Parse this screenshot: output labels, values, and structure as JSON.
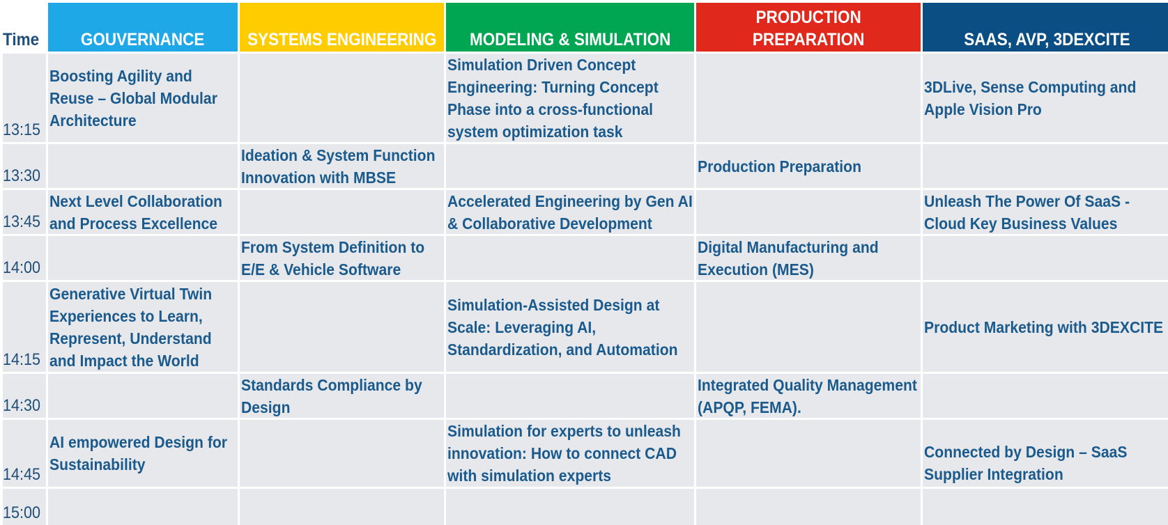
{
  "headers": {
    "time": "Time",
    "c1": "GOUVERNANCE",
    "c2": "SYSTEMS ENGINEERING",
    "c3": "MODELING & SIMULATION",
    "c4_line1": "PRODUCTION",
    "c4_line2": "PREPARATION",
    "c5": "SAAS, AVP, 3DEXCITE"
  },
  "header_colors": {
    "c1": "#1fa8e8",
    "c2": "#ffcc00",
    "c3": "#00a651",
    "c4": "#e0291c",
    "c5": "#0b4e84"
  },
  "times": [
    "13:15",
    "13:30",
    "13:45",
    "14:00",
    "14:15",
    "14:30",
    "14:45",
    "15:00"
  ],
  "sessions": {
    "gov_1315": "Boosting Agility and Reuse – Global Modular Architecture",
    "gov_1345": "Next Level Collaboration and Process Excellence",
    "gov_1415": "Generative Virtual Twin Experiences to Learn, Represent, Understand and Impact the World",
    "gov_1445": "AI empowered Design for Sustainability",
    "sys_1330": "Ideation & System Function Innovation with MBSE",
    "sys_1400": "From System Definition to E/E & Vehicle Software",
    "sys_1430": "Standards Compliance by Design",
    "mod_1315": "Simulation Driven Concept Engineering: Turning Concept Phase into a cross-functional system optimization task",
    "mod_1345": "Accelerated Engineering by Gen AI & Collaborative Development",
    "mod_1415": "Simulation-Assisted Design at Scale: Leveraging AI, Standardization, and Automation",
    "mod_1445": "Simulation for experts to unleash innovation: How to connect CAD with simulation experts",
    "prod_1330": "Production Preparation",
    "prod_1400": "Digital Manufacturing and Execution (MES)",
    "prod_1430": "Integrated Quality Management (APQP, FEMA).",
    "saas_1315": "3DLive, Sense Computing and Apple Vision Pro",
    "saas_1345": "Unleash The Power Of SaaS - Cloud Key Business Values",
    "saas_1415": "Product Marketing with 3DEXCITE",
    "saas_1445": "Connected by Design – SaaS Supplier Integration"
  }
}
